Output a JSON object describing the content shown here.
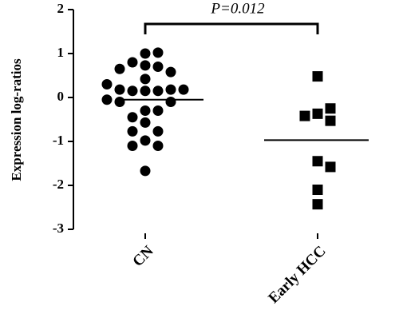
{
  "chart_data": {
    "type": "dot-plot",
    "y_label": "Expression log-ratios",
    "categories": [
      "CN",
      "Early HCC"
    ],
    "groups": [
      {
        "marker": "circle",
        "color": "#000000",
        "mean": -0.05,
        "values": [
          1.0,
          1.02,
          0.73,
          0.8,
          0.7,
          0.58,
          0.65,
          0.42,
          0.15,
          0.15,
          0.15,
          0.18,
          0.18,
          0.18,
          0.3,
          -0.1,
          -0.1,
          -0.05,
          -0.3,
          -0.3,
          -0.45,
          -0.57,
          -0.77,
          -0.77,
          -0.98,
          -1.1,
          -1.1,
          -1.67
        ]
      },
      {
        "marker": "square",
        "color": "#000000",
        "mean": -0.97,
        "values": [
          0.48,
          -0.37,
          -0.53,
          -0.42,
          -0.25,
          -1.45,
          -1.58,
          -2.1,
          -2.43
        ]
      }
    ],
    "comparison": {
      "label": "P=0.012"
    },
    "ylim": [
      -3,
      2
    ],
    "yticks": [
      -3,
      -2,
      -1,
      0,
      1,
      2
    ]
  }
}
